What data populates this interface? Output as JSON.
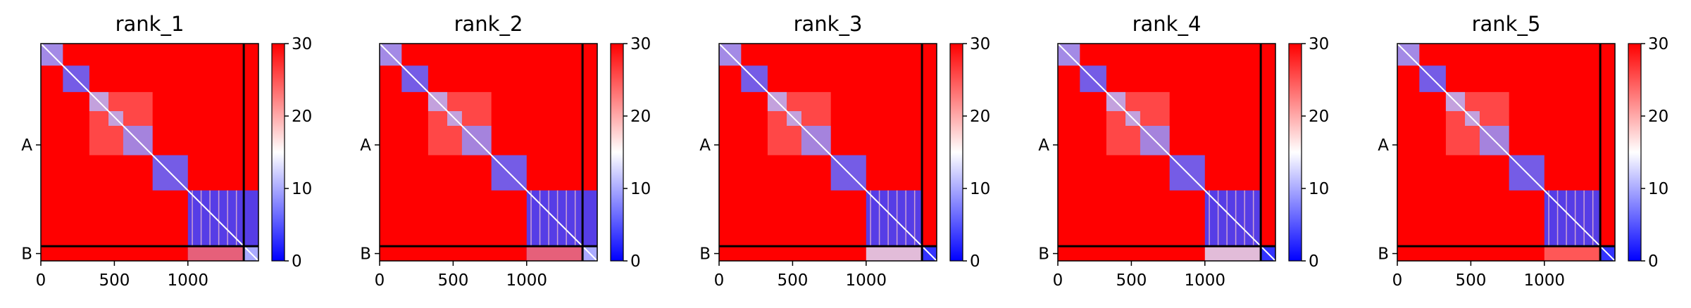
{
  "chart_data": {
    "type": "heatmap",
    "colormap": "bwr",
    "colors": {
      "low": "#0000ff",
      "mid": "#ffffff",
      "high": "#ff0000",
      "divider": "#000000"
    },
    "zlim": [
      0,
      30
    ],
    "colorbar_ticks": [
      "0",
      "10",
      "20",
      "30"
    ],
    "x_ticks": [
      "0",
      "500",
      "1000"
    ],
    "y_ticks": [
      "A",
      "B"
    ],
    "total_residues": 1480,
    "chain_boundary": 1380,
    "panels": [
      {
        "title": "rank_1",
        "low_error_blocks": [
          [
            0,
            150
          ],
          [
            150,
            330
          ],
          [
            330,
            460
          ],
          [
            460,
            560
          ],
          [
            560,
            760
          ],
          [
            760,
            1000
          ],
          [
            1000,
            1480
          ]
        ],
        "interchain_B_on_A": "high",
        "chainB_self": "mixed"
      },
      {
        "title": "rank_2",
        "low_error_blocks": [
          [
            0,
            150
          ],
          [
            150,
            330
          ],
          [
            330,
            460
          ],
          [
            460,
            560
          ],
          [
            560,
            760
          ],
          [
            760,
            1000
          ],
          [
            1000,
            1480
          ]
        ],
        "interchain_B_on_A": "high",
        "chainB_self": "mixed"
      },
      {
        "title": "rank_3",
        "low_error_blocks": [
          [
            0,
            150
          ],
          [
            150,
            330
          ],
          [
            330,
            460
          ],
          [
            460,
            560
          ],
          [
            560,
            760
          ],
          [
            760,
            1000
          ],
          [
            1000,
            1380
          ]
        ],
        "interchain_B_on_A": "mixed",
        "chainB_self": "low"
      },
      {
        "title": "rank_4",
        "low_error_blocks": [
          [
            0,
            150
          ],
          [
            150,
            330
          ],
          [
            330,
            460
          ],
          [
            460,
            560
          ],
          [
            560,
            760
          ],
          [
            760,
            1000
          ],
          [
            1000,
            1380
          ]
        ],
        "interchain_B_on_A": "mixed",
        "chainB_self": "low"
      },
      {
        "title": "rank_5",
        "low_error_blocks": [
          [
            0,
            150
          ],
          [
            150,
            330
          ],
          [
            330,
            460
          ],
          [
            460,
            560
          ],
          [
            560,
            760
          ],
          [
            760,
            1000
          ],
          [
            1000,
            1380
          ]
        ],
        "interchain_B_on_A": "high",
        "chainB_self": "low"
      }
    ]
  }
}
